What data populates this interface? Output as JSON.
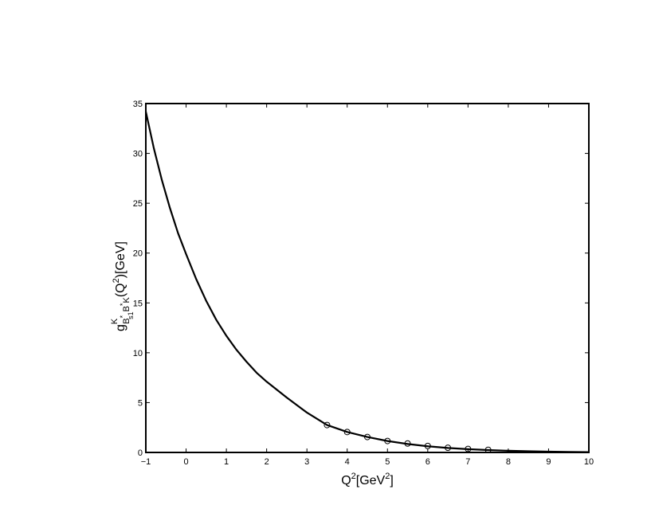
{
  "chart_data": {
    "type": "line",
    "title": "",
    "xlabel": {
      "base": "Q",
      "exp": "2",
      "mid": "[GeV",
      "exp2": "2",
      "end": "]"
    },
    "ylabel": {
      "g": "g",
      "sup": "K",
      "sub_b1": "B",
      "sub_star1": "*",
      "sub_s1": "s1",
      "sub_b2": "B",
      "sub_star2": "*",
      "sub_k": "K",
      "paren": "(Q",
      "exp": "2",
      "end": ")[GeV]"
    },
    "xlim": [
      -1,
      10
    ],
    "ylim": [
      0,
      35
    ],
    "xticks": [
      -1,
      0,
      1,
      2,
      3,
      4,
      5,
      6,
      7,
      8,
      9,
      10
    ],
    "xtick_labels": [
      "−1",
      "0",
      "1",
      "2",
      "3",
      "4",
      "5",
      "6",
      "7",
      "8",
      "9",
      "10"
    ],
    "yticks": [
      0,
      5,
      10,
      15,
      20,
      25,
      30,
      35
    ],
    "ytick_labels": [
      "0",
      "5",
      "10",
      "15",
      "20",
      "25",
      "30",
      "35"
    ],
    "grid": false,
    "series": [
      {
        "style": "solid-line",
        "x": [
          -1.0,
          -0.8,
          -0.6,
          -0.4,
          -0.2,
          0.0,
          0.25,
          0.5,
          0.75,
          1.0,
          1.25,
          1.5,
          1.75,
          2.0,
          2.5,
          3.0,
          3.5,
          4.0,
          4.5,
          5.0,
          5.5,
          6.0,
          6.5,
          7.0,
          7.5,
          8.0,
          8.5,
          9.0,
          9.5,
          10.0
        ],
        "y": [
          34.2,
          30.5,
          27.3,
          24.5,
          22.0,
          19.9,
          17.4,
          15.2,
          13.3,
          11.7,
          10.3,
          9.1,
          8.0,
          7.1,
          5.5,
          4.0,
          2.75,
          2.05,
          1.55,
          1.15,
          0.85,
          0.62,
          0.45,
          0.33,
          0.24,
          0.17,
          0.12,
          0.08,
          0.05,
          0.03
        ]
      },
      {
        "style": "circle-markers",
        "x": [
          3.5,
          4.0,
          4.5,
          5.0,
          5.5,
          6.0,
          6.5,
          7.0,
          7.5
        ],
        "y": [
          2.75,
          2.05,
          1.55,
          1.15,
          0.9,
          0.65,
          0.47,
          0.35,
          0.26
        ]
      }
    ]
  }
}
